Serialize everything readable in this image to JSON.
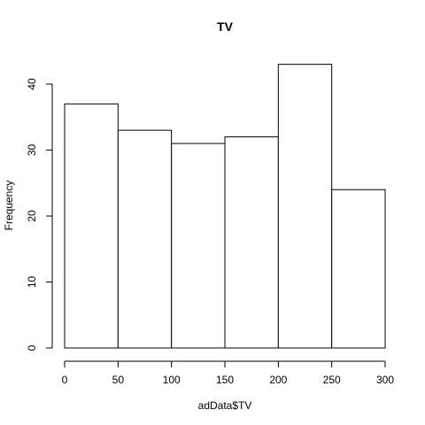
{
  "chart_data": {
    "type": "bar",
    "title": "TV",
    "xlabel": "adData$TV",
    "ylabel": "Frequency",
    "bins": [
      {
        "start": 0,
        "end": 50,
        "value": 37
      },
      {
        "start": 50,
        "end": 100,
        "value": 33
      },
      {
        "start": 100,
        "end": 150,
        "value": 31
      },
      {
        "start": 150,
        "end": 200,
        "value": 32
      },
      {
        "start": 200,
        "end": 250,
        "value": 43
      },
      {
        "start": 250,
        "end": 300,
        "value": 24
      }
    ],
    "xlim": [
      0,
      300
    ],
    "ylim": [
      0,
      43
    ],
    "xticks": [
      0,
      50,
      100,
      150,
      200,
      250,
      300
    ],
    "yticks": [
      0,
      10,
      20,
      30,
      40
    ],
    "grid": false,
    "legend": "none"
  }
}
